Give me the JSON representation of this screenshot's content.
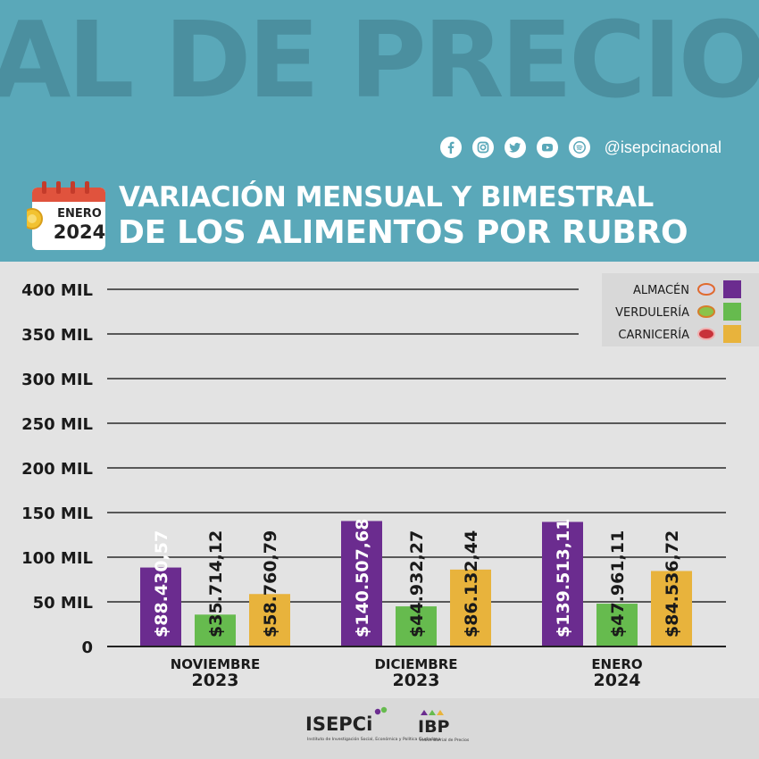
{
  "header": {
    "background_word": "AL DE PRECIOS",
    "social_handle": "@isepcinacional",
    "social_icons": [
      "facebook-icon",
      "instagram-icon",
      "twitter-icon",
      "youtube-icon",
      "spotify-icon"
    ],
    "calendar_month": "ENERO",
    "calendar_year": "2024",
    "title_line1": "VARIACIÓN MENSUAL Y BIMESTRAL",
    "title_line2": "DE LOS ALIMENTOS POR RUBRO"
  },
  "colors": {
    "header_bg": "#5aa8b9",
    "almacen": "#6b2c8f",
    "verduleria": "#66bb4e",
    "carniceria": "#e8b33c"
  },
  "chart_data": {
    "type": "bar",
    "categories": [
      {
        "month": "NOVIEMBRE",
        "year": "2023"
      },
      {
        "month": "DICIEMBRE",
        "year": "2023"
      },
      {
        "month": "ENERO",
        "year": "2024"
      }
    ],
    "series": [
      {
        "name": "ALMACÉN",
        "color": "#6b2c8f",
        "values": [
          88430.57,
          140507.68,
          139513.11
        ],
        "labels": [
          "$88.430,57",
          "$140.507,68",
          "$139.513,11"
        ]
      },
      {
        "name": "VERDULERÍA",
        "color": "#66bb4e",
        "values": [
          35714.12,
          44932.27,
          47961.11
        ],
        "labels": [
          "$35.714,12",
          "$44.932,27",
          "$47.961,11"
        ]
      },
      {
        "name": "CARNICERÍA",
        "color": "#e8b33c",
        "values": [
          58760.79,
          86132.44,
          84536.72
        ],
        "labels": [
          "$58.760,79",
          "$86.132,44",
          "$84.536,72"
        ]
      }
    ],
    "yticks": [
      {
        "value": 0,
        "label": "0"
      },
      {
        "value": 50000,
        "label": "50 MIL"
      },
      {
        "value": 100000,
        "label": "100 MIL"
      },
      {
        "value": 150000,
        "label": "150 MIL"
      },
      {
        "value": 200000,
        "label": "200 MIL"
      },
      {
        "value": 250000,
        "label": "250 MIL"
      },
      {
        "value": 300000,
        "label": "300 MIL"
      },
      {
        "value": 350000,
        "label": "350 MIL"
      },
      {
        "value": 400000,
        "label": "400 MIL"
      }
    ],
    "ylim": [
      0,
      400000
    ],
    "grid": true,
    "legend_position": "top-right"
  },
  "footer": {
    "logo1_name": "ISEPCi",
    "logo1_caption": "Instituto de Investigación Social, Económica y Política Ciudadana",
    "logo2_name": "IBP",
    "logo2_caption": "Índice Barrial de Precios"
  }
}
